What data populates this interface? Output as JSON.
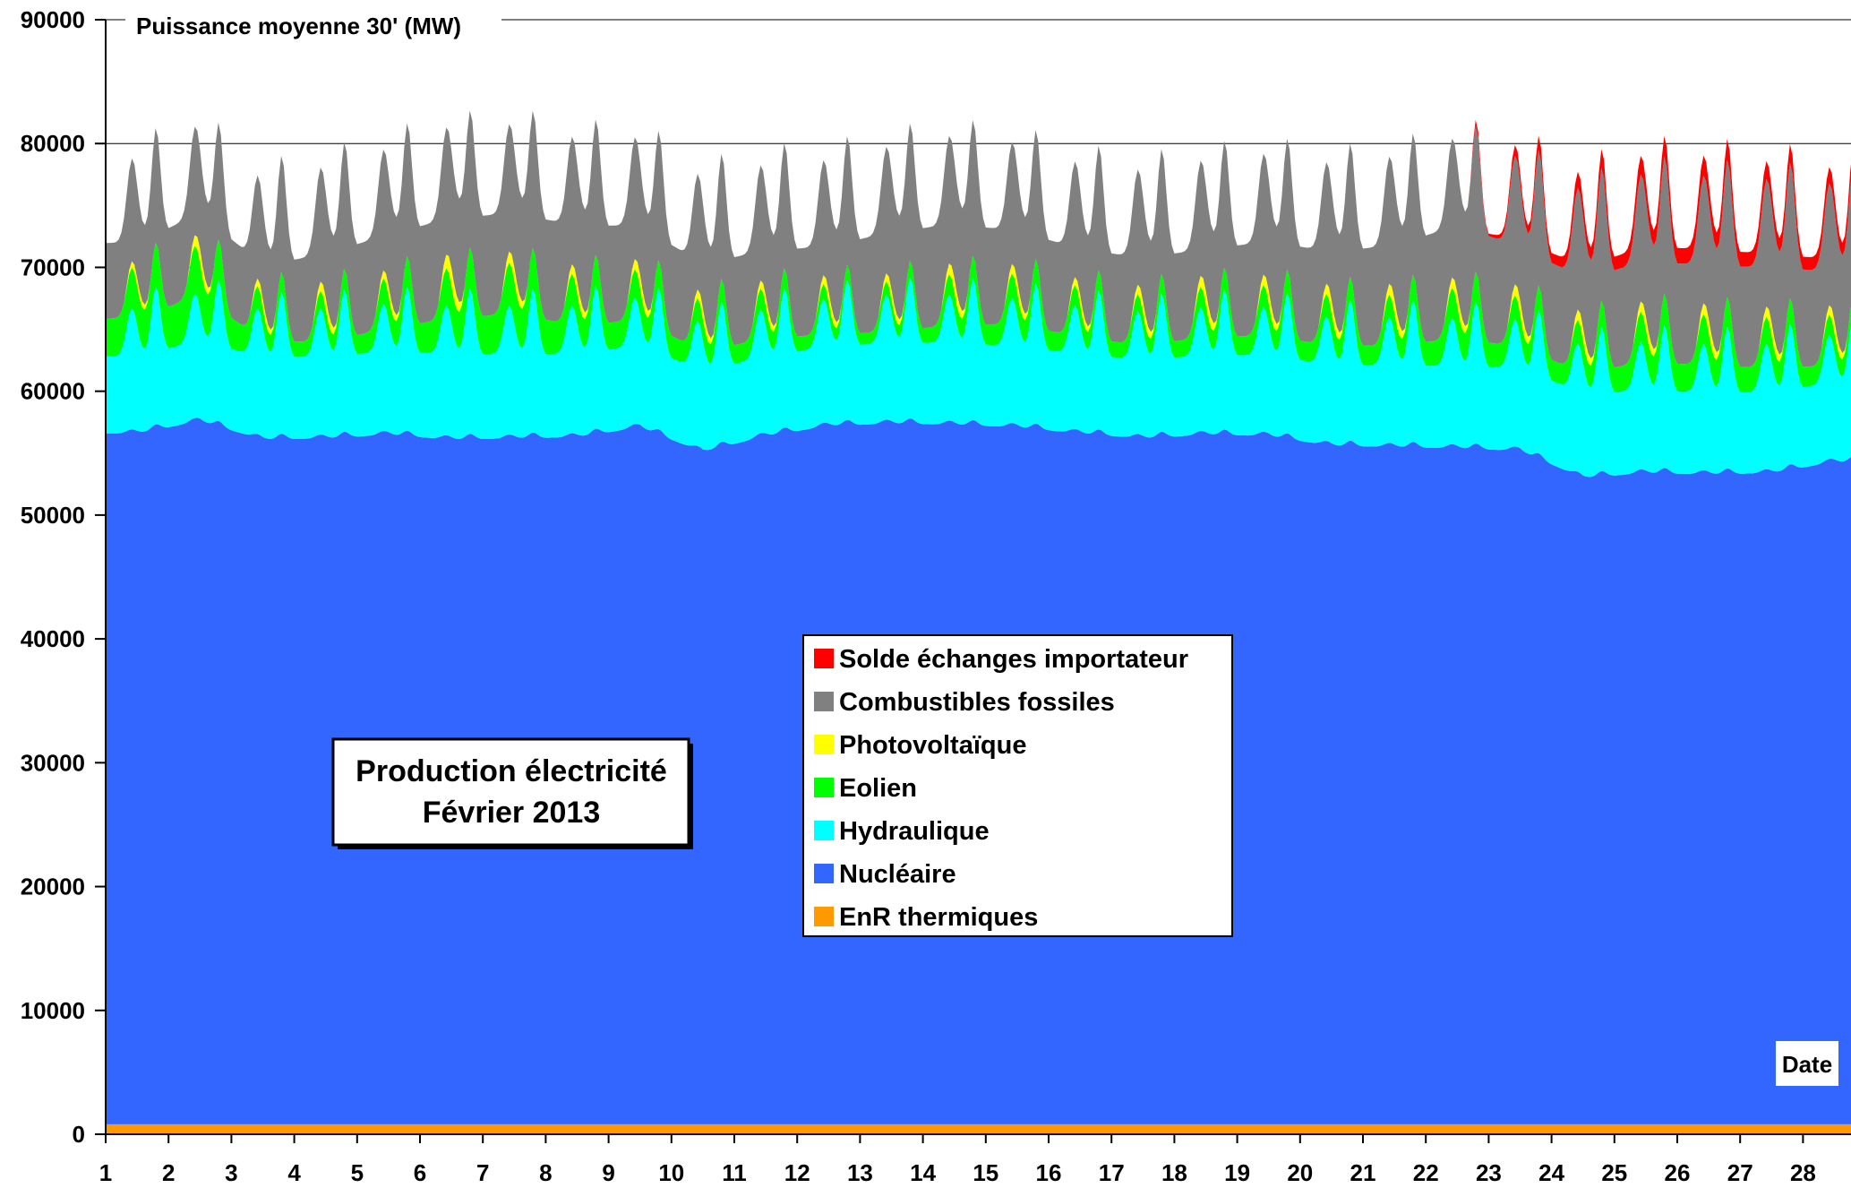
{
  "chart_data": {
    "type": "area",
    "stacked": true,
    "title": "Production électricité",
    "subtitle": "Février  2013",
    "ylabel": "Puissance moyenne 30' (MW)",
    "xlabel": "Date",
    "ylim": [
      0,
      90000
    ],
    "yticks": [
      "0",
      "10000",
      "20000",
      "30000",
      "40000",
      "50000",
      "60000",
      "70000",
      "80000",
      "90000"
    ],
    "x_categories": [
      "1",
      "2",
      "3",
      "4",
      "5",
      "6",
      "7",
      "8",
      "9",
      "10",
      "11",
      "12",
      "13",
      "14",
      "15",
      "16",
      "17",
      "18",
      "19",
      "20",
      "21",
      "22",
      "23",
      "24",
      "25",
      "26",
      "27",
      "28"
    ],
    "grid": "horizontal",
    "legend_position": "center",
    "series": [
      {
        "name": "EnR thermiques",
        "color": "#FF9900",
        "values": [
          800,
          800,
          800,
          800,
          800,
          800,
          800,
          800,
          800,
          800,
          800,
          800,
          800,
          800,
          800,
          800,
          800,
          800,
          800,
          800,
          800,
          800,
          800,
          800,
          800,
          800,
          800,
          800
        ]
      },
      {
        "name": "Nucléaire",
        "color": "#3366FF",
        "values": [
          56000,
          57000,
          55500,
          55600,
          55900,
          55500,
          55600,
          55700,
          56500,
          54500,
          55800,
          56600,
          56800,
          56700,
          56500,
          56000,
          55600,
          55900,
          55800,
          55000,
          54900,
          54800,
          54600,
          52400,
          52800,
          52700,
          52800,
          53700
        ]
      },
      {
        "name": "Hydraulique",
        "color": "#00FFFF",
        "values": [
          8500,
          8800,
          8900,
          8900,
          9000,
          9200,
          9100,
          9000,
          8900,
          8800,
          8700,
          8700,
          8800,
          8900,
          8800,
          8700,
          8600,
          8700,
          8800,
          8800,
          8900,
          8900,
          9000,
          9100,
          9000,
          8900,
          8800,
          8700
        ]
      },
      {
        "name": "Eolien",
        "color": "#00FF00",
        "values": [
          3200,
          3800,
          1500,
          1300,
          2000,
          3000,
          3400,
          2400,
          2200,
          1700,
          1600,
          1100,
          1000,
          1600,
          1900,
          1500,
          1300,
          1600,
          1700,
          1700,
          1700,
          2400,
          1800,
          1800,
          2400,
          2300,
          2100,
          1500
        ]
      },
      {
        "name": "Photovoltaïque",
        "color": "#FFFF00",
        "values": [
          400,
          700,
          450,
          600,
          500,
          900,
          700,
          600,
          650,
          550,
          500,
          550,
          500,
          700,
          600,
          500,
          600,
          700,
          650,
          650,
          700,
          650,
          700,
          650,
          650,
          700,
          650,
          600
        ]
      },
      {
        "name": "Combustibles fossiles",
        "color": "#808080",
        "values": [
          7500,
          8000,
          7500,
          8500,
          9000,
          9500,
          9500,
          9500,
          9000,
          8500,
          8500,
          8500,
          9500,
          9500,
          9000,
          8500,
          8500,
          8500,
          9000,
          9000,
          9500,
          10500,
          9500,
          9000,
          9500,
          9500,
          9500,
          9000
        ]
      },
      {
        "name": "Solde échanges importateur",
        "color": "#FF0000",
        "values": [
          0,
          0,
          0,
          0,
          0,
          0,
          0,
          0,
          0,
          0,
          0,
          0,
          0,
          0,
          0,
          0,
          0,
          0,
          0,
          0,
          0,
          0,
          800,
          1200,
          1400,
          1500,
          1300,
          1200
        ]
      }
    ]
  }
}
